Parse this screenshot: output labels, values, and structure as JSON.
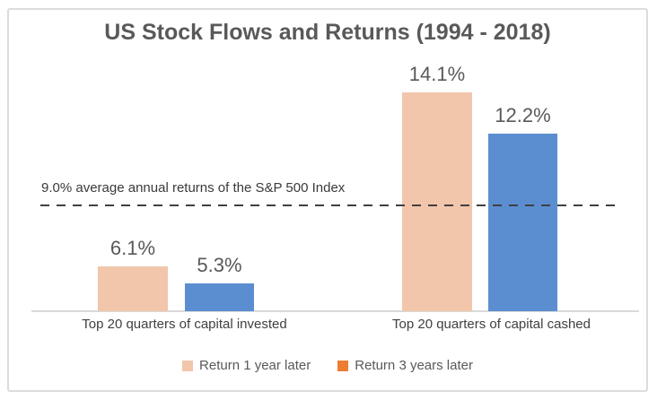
{
  "chart_data": {
    "type": "bar",
    "title": "US Stock Flows and Returns (1994 - 2018)",
    "categories": [
      "Top 20 quarters of capital invested",
      "Top 20 quarters of capital cashed"
    ],
    "series": [
      {
        "name": "Return 1 year later",
        "color": "#f2c6ab",
        "values": [
          6.1,
          14.1
        ],
        "labels": [
          "6.1%",
          "14.1%"
        ]
      },
      {
        "name": "Return 3 years later",
        "color": "#5b8ed0",
        "values": [
          5.3,
          12.2
        ],
        "labels": [
          "5.3%",
          "12.2%"
        ]
      }
    ],
    "reference_line": {
      "value": 9.0,
      "label": "9.0% average annual returns of the S&P 500 Index",
      "style": "dashed",
      "color": "#404040"
    },
    "legend": {
      "position": "bottom",
      "entries": [
        {
          "label": "Return 1 year later",
          "swatch": "#f2c6ab"
        },
        {
          "label": "Return 3 years later",
          "swatch": "#ed7d31"
        }
      ]
    },
    "grid": false,
    "ylim": [
      0,
      16
    ],
    "unit": "%",
    "xlabel": "",
    "ylabel": ""
  },
  "colors": {
    "frame_border": "#dcdcdc",
    "axis_line": "#d9d9d9",
    "title_text": "#595959",
    "value_label_text": "#595959",
    "category_text": "#404040",
    "annotation_text": "#3a3a3a",
    "legend_text": "#595959",
    "bar_peach": "#f2c6ab",
    "bar_blue": "#5b8ed0",
    "legend_orange": "#ed7d31"
  }
}
